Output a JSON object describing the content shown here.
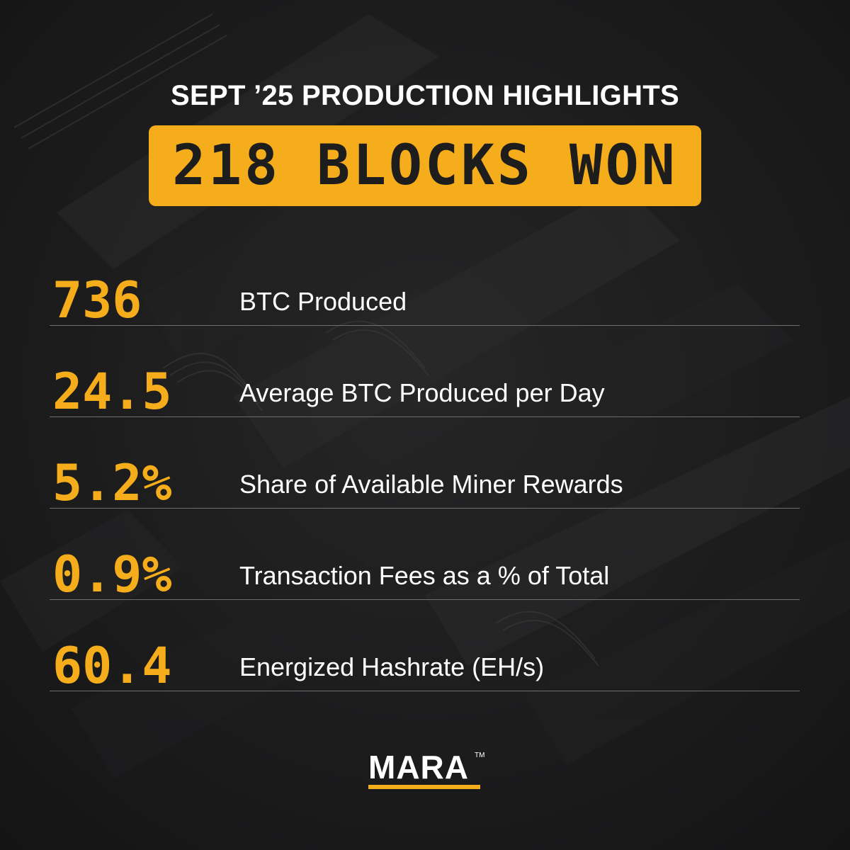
{
  "header": {
    "title": "SEPT ’25 PRODUCTION HIGHLIGHTS",
    "banner": "218 BLOCKS WON"
  },
  "stats": [
    {
      "value": "736",
      "label": "BTC Produced"
    },
    {
      "value": "24.5",
      "label": "Average BTC Produced per Day"
    },
    {
      "value": "5.2%",
      "label": "Share of Available Miner Rewards"
    },
    {
      "value": "0.9%",
      "label": "Transaction Fees as a % of Total"
    },
    {
      "value": "60.4",
      "label": "Energized Hashrate (EH/s)"
    }
  ],
  "logo": {
    "text": "MARA",
    "tm": "TM"
  },
  "colors": {
    "accent": "#f5ad1b",
    "background": "#1c1c1d",
    "text": "#ffffff",
    "banner_text": "#1d1d1d",
    "divider": "#6e6e6e"
  }
}
